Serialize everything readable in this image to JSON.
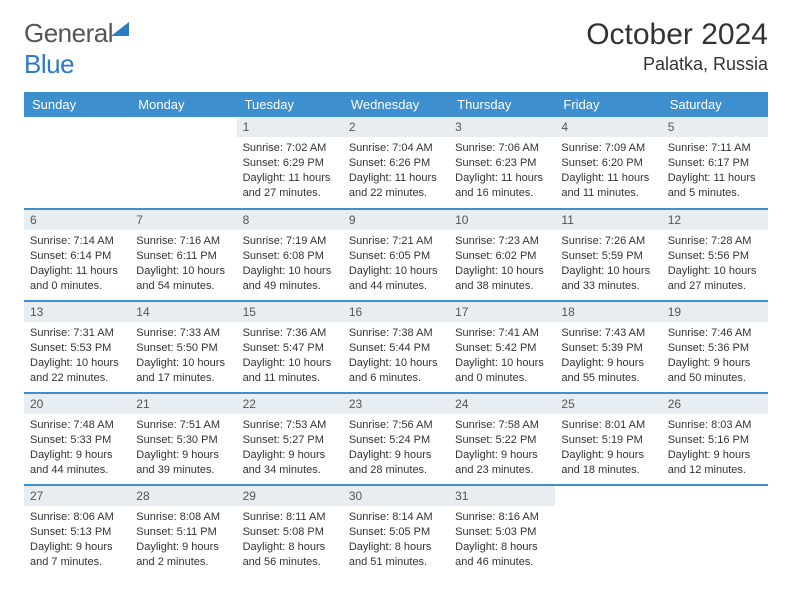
{
  "brand": {
    "part1": "General",
    "part2": "Blue"
  },
  "title": "October 2024",
  "location": "Palatka, Russia",
  "colors": {
    "header_bg": "#3d8fcf",
    "header_fg": "#ffffff",
    "daynum_bg": "#e8edf1",
    "row_divider": "#3d8fcf",
    "text": "#333333"
  },
  "day_headers": [
    "Sunday",
    "Monday",
    "Tuesday",
    "Wednesday",
    "Thursday",
    "Friday",
    "Saturday"
  ],
  "weeks": [
    [
      null,
      null,
      {
        "n": "1",
        "sr": "7:02 AM",
        "ss": "6:29 PM",
        "dl": "11 hours and 27 minutes."
      },
      {
        "n": "2",
        "sr": "7:04 AM",
        "ss": "6:26 PM",
        "dl": "11 hours and 22 minutes."
      },
      {
        "n": "3",
        "sr": "7:06 AM",
        "ss": "6:23 PM",
        "dl": "11 hours and 16 minutes."
      },
      {
        "n": "4",
        "sr": "7:09 AM",
        "ss": "6:20 PM",
        "dl": "11 hours and 11 minutes."
      },
      {
        "n": "5",
        "sr": "7:11 AM",
        "ss": "6:17 PM",
        "dl": "11 hours and 5 minutes."
      }
    ],
    [
      {
        "n": "6",
        "sr": "7:14 AM",
        "ss": "6:14 PM",
        "dl": "11 hours and 0 minutes."
      },
      {
        "n": "7",
        "sr": "7:16 AM",
        "ss": "6:11 PM",
        "dl": "10 hours and 54 minutes."
      },
      {
        "n": "8",
        "sr": "7:19 AM",
        "ss": "6:08 PM",
        "dl": "10 hours and 49 minutes."
      },
      {
        "n": "9",
        "sr": "7:21 AM",
        "ss": "6:05 PM",
        "dl": "10 hours and 44 minutes."
      },
      {
        "n": "10",
        "sr": "7:23 AM",
        "ss": "6:02 PM",
        "dl": "10 hours and 38 minutes."
      },
      {
        "n": "11",
        "sr": "7:26 AM",
        "ss": "5:59 PM",
        "dl": "10 hours and 33 minutes."
      },
      {
        "n": "12",
        "sr": "7:28 AM",
        "ss": "5:56 PM",
        "dl": "10 hours and 27 minutes."
      }
    ],
    [
      {
        "n": "13",
        "sr": "7:31 AM",
        "ss": "5:53 PM",
        "dl": "10 hours and 22 minutes."
      },
      {
        "n": "14",
        "sr": "7:33 AM",
        "ss": "5:50 PM",
        "dl": "10 hours and 17 minutes."
      },
      {
        "n": "15",
        "sr": "7:36 AM",
        "ss": "5:47 PM",
        "dl": "10 hours and 11 minutes."
      },
      {
        "n": "16",
        "sr": "7:38 AM",
        "ss": "5:44 PM",
        "dl": "10 hours and 6 minutes."
      },
      {
        "n": "17",
        "sr": "7:41 AM",
        "ss": "5:42 PM",
        "dl": "10 hours and 0 minutes."
      },
      {
        "n": "18",
        "sr": "7:43 AM",
        "ss": "5:39 PM",
        "dl": "9 hours and 55 minutes."
      },
      {
        "n": "19",
        "sr": "7:46 AM",
        "ss": "5:36 PM",
        "dl": "9 hours and 50 minutes."
      }
    ],
    [
      {
        "n": "20",
        "sr": "7:48 AM",
        "ss": "5:33 PM",
        "dl": "9 hours and 44 minutes."
      },
      {
        "n": "21",
        "sr": "7:51 AM",
        "ss": "5:30 PM",
        "dl": "9 hours and 39 minutes."
      },
      {
        "n": "22",
        "sr": "7:53 AM",
        "ss": "5:27 PM",
        "dl": "9 hours and 34 minutes."
      },
      {
        "n": "23",
        "sr": "7:56 AM",
        "ss": "5:24 PM",
        "dl": "9 hours and 28 minutes."
      },
      {
        "n": "24",
        "sr": "7:58 AM",
        "ss": "5:22 PM",
        "dl": "9 hours and 23 minutes."
      },
      {
        "n": "25",
        "sr": "8:01 AM",
        "ss": "5:19 PM",
        "dl": "9 hours and 18 minutes."
      },
      {
        "n": "26",
        "sr": "8:03 AM",
        "ss": "5:16 PM",
        "dl": "9 hours and 12 minutes."
      }
    ],
    [
      {
        "n": "27",
        "sr": "8:06 AM",
        "ss": "5:13 PM",
        "dl": "9 hours and 7 minutes."
      },
      {
        "n": "28",
        "sr": "8:08 AM",
        "ss": "5:11 PM",
        "dl": "9 hours and 2 minutes."
      },
      {
        "n": "29",
        "sr": "8:11 AM",
        "ss": "5:08 PM",
        "dl": "8 hours and 56 minutes."
      },
      {
        "n": "30",
        "sr": "8:14 AM",
        "ss": "5:05 PM",
        "dl": "8 hours and 51 minutes."
      },
      {
        "n": "31",
        "sr": "8:16 AM",
        "ss": "5:03 PM",
        "dl": "8 hours and 46 minutes."
      },
      null,
      null
    ]
  ],
  "labels": {
    "sunrise": "Sunrise:",
    "sunset": "Sunset:",
    "daylight": "Daylight:"
  }
}
